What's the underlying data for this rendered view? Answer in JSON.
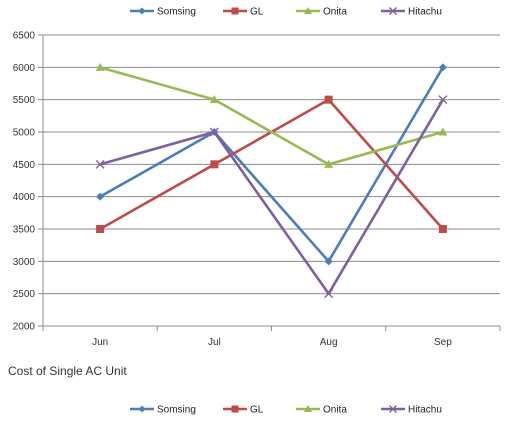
{
  "caption": "Cost of Single AC Unit",
  "chart_data": {
    "type": "line",
    "categories": [
      "Jun",
      "Jul",
      "Aug",
      "Sep"
    ],
    "series": [
      {
        "name": "Somsing",
        "values": [
          4000,
          5000,
          3000,
          6000
        ],
        "color": "#4a7ebb",
        "marker": "diamond"
      },
      {
        "name": "GL",
        "values": [
          3500,
          4500,
          5500,
          3500
        ],
        "color": "#be4b48",
        "marker": "square"
      },
      {
        "name": "Onita",
        "values": [
          6000,
          5500,
          4500,
          5000
        ],
        "color": "#98b954",
        "marker": "triangle"
      },
      {
        "name": "Hitachu",
        "values": [
          4500,
          5000,
          2500,
          5500
        ],
        "color": "#7d60a0",
        "marker": "x"
      }
    ],
    "ylim": [
      2000,
      6500
    ],
    "yticks": [
      2000,
      2500,
      3000,
      3500,
      4000,
      4500,
      5000,
      5500,
      6000,
      6500
    ],
    "grid": true,
    "legend": "top and bottom"
  }
}
